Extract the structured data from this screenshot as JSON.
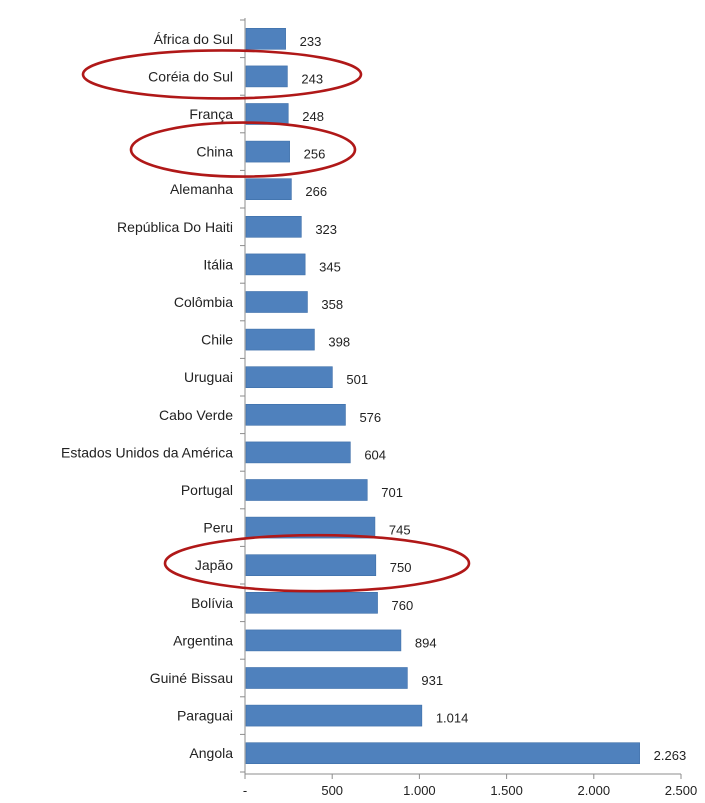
{
  "chart_data": {
    "type": "bar",
    "orientation": "horizontal",
    "categories": [
      "África do Sul",
      "Coréia do Sul",
      "França",
      "China",
      "Alemanha",
      "República Do Haiti",
      "Itália",
      "Colômbia",
      "Chile",
      "Uruguai",
      "Cabo Verde",
      "Estados Unidos da América",
      "Portugal",
      "Peru",
      "Japão",
      "Bolívia",
      "Argentina",
      "Guiné Bissau",
      "Paraguai",
      "Angola"
    ],
    "values": [
      233,
      243,
      248,
      256,
      266,
      323,
      345,
      358,
      398,
      501,
      576,
      604,
      701,
      745,
      750,
      760,
      894,
      931,
      1014,
      2263
    ],
    "value_labels": [
      "233",
      "243",
      "248",
      "256",
      "266",
      "323",
      "345",
      "358",
      "398",
      "501",
      "576",
      "604",
      "701",
      "745",
      "750",
      "760",
      "894",
      "931",
      "1.014",
      "2.263"
    ],
    "xlim": [
      0,
      2500
    ],
    "x_ticks": [
      0,
      500,
      1000,
      1500,
      2000,
      2500
    ],
    "x_tick_labels": [
      "-",
      "500",
      "1.000",
      "1.500",
      "2.000",
      "2.500"
    ],
    "highlighted": [
      "Coréia do Sul",
      "China",
      "Japão"
    ],
    "colors": {
      "bar": "#4f81bd",
      "bar_edge": "#3d6ea8",
      "axis": "#8c8c8c",
      "highlight": "#b01818"
    },
    "title": "",
    "xlabel": "",
    "ylabel": "",
    "grid": false,
    "legend": "none"
  }
}
